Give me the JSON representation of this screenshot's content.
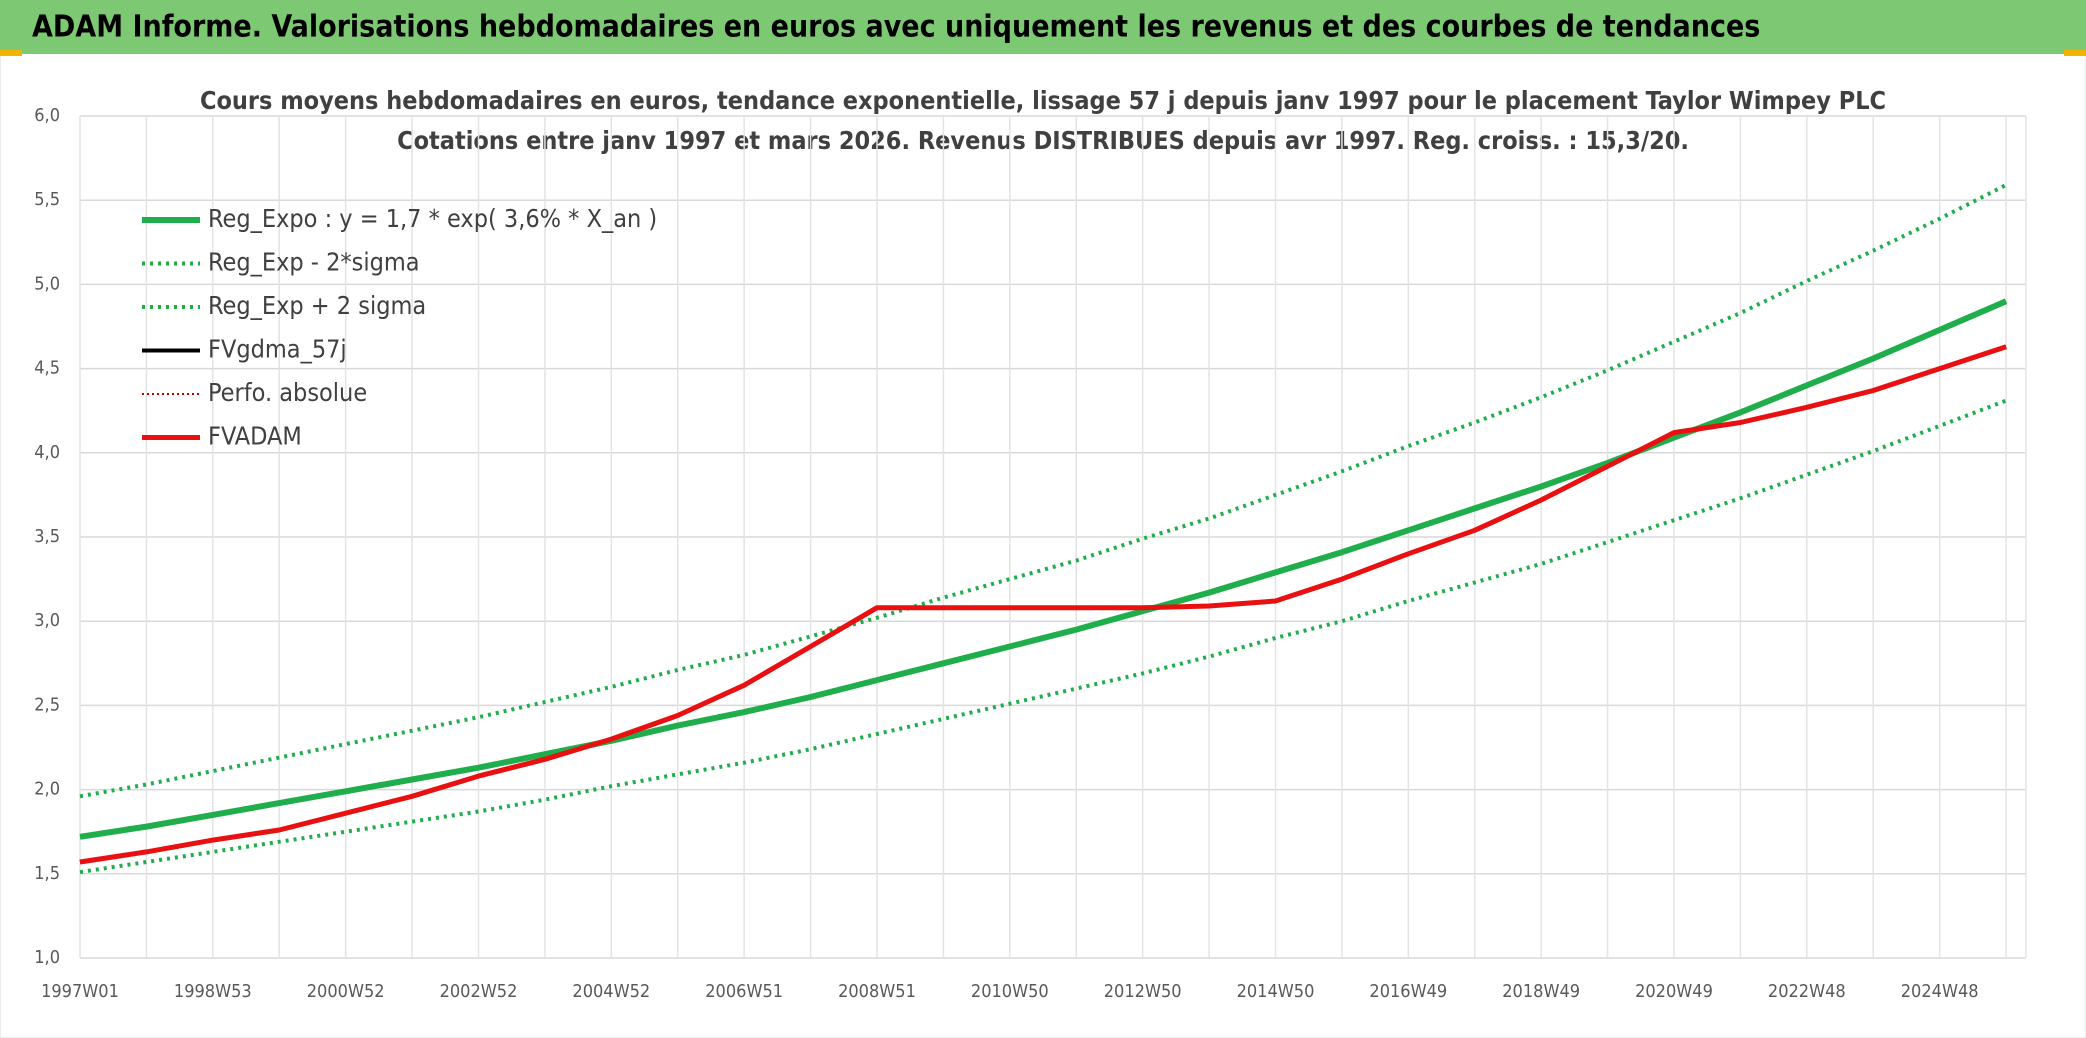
{
  "header": {
    "title": "ADAM Informe. Valorisations hebdomadaires en euros avec uniquement les revenus et des courbes de tendances"
  },
  "chart_data": {
    "type": "line",
    "title": "Cours moyens hebdomadaires en euros, tendance exponentielle, lissage 57 j depuis janv 1997 pour le placement Taylor Wimpey PLC",
    "subtitle": "Cotations entre janv 1997 et mars 2026. Revenus DISTRIBUES depuis avr 1997. Reg. croiss. : 15,3/20.",
    "categories": [
      "1997W01",
      null,
      "1998W53",
      null,
      "2000W52",
      null,
      "2002W52",
      null,
      "2004W52",
      null,
      "2006W51",
      null,
      "2008W51",
      null,
      "2010W50",
      null,
      "2012W50",
      null,
      "2014W50",
      null,
      "2016W49",
      null,
      "2018W49",
      null,
      "2020W49",
      null,
      "2022W48",
      null,
      "2024W48",
      null
    ],
    "ylim": [
      1,
      6
    ],
    "yticks": [
      {
        "value": 1,
        "label": "1,0"
      },
      {
        "value": 1.5,
        "label": "1,5"
      },
      {
        "value": 2,
        "label": "2,0"
      },
      {
        "value": 2.5,
        "label": "2,5"
      },
      {
        "value": 3,
        "label": "3,0"
      },
      {
        "value": 3.5,
        "label": "3,5"
      },
      {
        "value": 4,
        "label": "4,0"
      },
      {
        "value": 4.5,
        "label": "4,5"
      },
      {
        "value": 5,
        "label": "5,0"
      },
      {
        "value": 5.5,
        "label": "5,5"
      },
      {
        "value": 6,
        "label": "6,0"
      }
    ],
    "grid": true,
    "legend": "top-left",
    "series": [
      {
        "name": "Reg_Expo : y = 1,7 * exp( 3,6% *  X_an )",
        "color": "#1fae4b",
        "style": "solid",
        "width": 6,
        "values": [
          1.72,
          1.78,
          1.85,
          1.92,
          1.99,
          2.06,
          2.13,
          2.21,
          2.29,
          2.38,
          2.46,
          2.55,
          2.65,
          2.75,
          2.85,
          2.95,
          3.06,
          3.17,
          3.29,
          3.41,
          3.54,
          3.67,
          3.8,
          3.94,
          4.09,
          4.24,
          4.4,
          4.56,
          4.73,
          4.9
        ]
      },
      {
        "name": "Reg_Exp - 2*sigma",
        "color": "#1fae4b",
        "style": "dotted",
        "width": 4,
        "values": [
          1.51,
          1.57,
          1.63,
          1.69,
          1.75,
          1.81,
          1.87,
          1.94,
          2.02,
          2.09,
          2.16,
          2.24,
          2.33,
          2.42,
          2.51,
          2.6,
          2.69,
          2.79,
          2.9,
          3.0,
          3.12,
          3.23,
          3.34,
          3.47,
          3.6,
          3.73,
          3.87,
          4.01,
          4.16,
          4.31
        ]
      },
      {
        "name": "Reg_Exp + 2 sigma",
        "color": "#1fae4b",
        "style": "dotted",
        "width": 4,
        "values": [
          1.96,
          2.03,
          2.11,
          2.19,
          2.27,
          2.35,
          2.43,
          2.52,
          2.61,
          2.71,
          2.8,
          2.91,
          3.02,
          3.14,
          3.25,
          3.36,
          3.49,
          3.61,
          3.75,
          3.89,
          4.04,
          4.18,
          4.33,
          4.49,
          4.66,
          4.83,
          5.02,
          5.2,
          5.39,
          5.59
        ]
      },
      {
        "name": "FVgdma_57j",
        "color": "#000000",
        "style": "solid",
        "width": 4,
        "values": [
          1.57,
          1.63,
          1.7,
          1.76,
          1.86,
          1.96,
          2.08,
          2.18,
          2.3,
          2.44,
          2.62,
          2.85,
          3.08,
          3.08,
          3.08,
          3.08,
          3.08,
          3.09,
          3.12,
          3.25,
          3.4,
          3.54,
          3.72,
          3.92,
          4.12,
          4.18,
          4.27,
          4.37,
          4.5,
          4.63
        ]
      },
      {
        "name": "Perfo. absolue",
        "color": "#c00000",
        "style": "dotted",
        "width": 2,
        "values": [
          1.57,
          1.63,
          1.7,
          1.76,
          1.86,
          1.96,
          2.08,
          2.18,
          2.3,
          2.44,
          2.62,
          2.85,
          3.08,
          3.08,
          3.08,
          3.08,
          3.08,
          3.09,
          3.12,
          3.25,
          3.4,
          3.54,
          3.72,
          3.92,
          4.12,
          4.18,
          4.27,
          4.37,
          4.5,
          4.63
        ]
      },
      {
        "name": "FVADAM",
        "color": "#e81010",
        "style": "solid",
        "width": 5,
        "values": [
          1.57,
          1.63,
          1.7,
          1.76,
          1.86,
          1.96,
          2.08,
          2.18,
          2.3,
          2.44,
          2.62,
          2.85,
          3.08,
          3.08,
          3.08,
          3.08,
          3.08,
          3.09,
          3.12,
          3.25,
          3.4,
          3.54,
          3.72,
          3.92,
          4.12,
          4.18,
          4.27,
          4.37,
          4.5,
          4.63
        ]
      }
    ]
  }
}
